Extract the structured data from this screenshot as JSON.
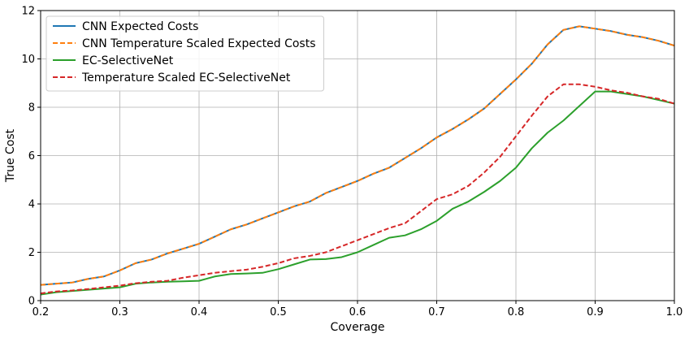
{
  "chart_data": {
    "type": "line",
    "title": "",
    "xlabel": "Coverage",
    "ylabel": "True Cost",
    "xlim": [
      0.2,
      1.0
    ],
    "ylim": [
      0,
      12
    ],
    "xticks": [
      0.2,
      0.3,
      0.4,
      0.5,
      0.6,
      0.7,
      0.8,
      0.9,
      1.0
    ],
    "xtick_labels": [
      "0.2",
      "0.3",
      "0.4",
      "0.5",
      "0.6",
      "0.7",
      "0.8",
      "0.9",
      "1.0"
    ],
    "yticks": [
      0,
      2,
      4,
      6,
      8,
      10,
      12
    ],
    "ytick_labels": [
      "0",
      "2",
      "4",
      "6",
      "8",
      "10",
      "12"
    ],
    "grid": true,
    "legend_position": "top-left",
    "series": [
      {
        "name": "CNN Expected Costs",
        "color": "#1f77b4",
        "style": "solid",
        "x": [
          0.2,
          0.22,
          0.24,
          0.26,
          0.28,
          0.3,
          0.32,
          0.34,
          0.36,
          0.38,
          0.4,
          0.42,
          0.44,
          0.46,
          0.48,
          0.5,
          0.52,
          0.54,
          0.56,
          0.58,
          0.6,
          0.62,
          0.64,
          0.66,
          0.68,
          0.7,
          0.72,
          0.74,
          0.76,
          0.78,
          0.8,
          0.82,
          0.84,
          0.86,
          0.88,
          0.9,
          0.92,
          0.94,
          0.96,
          0.98,
          1.0
        ],
        "y": [
          0.65,
          0.7,
          0.75,
          0.9,
          1.0,
          1.25,
          1.55,
          1.7,
          1.95,
          2.15,
          2.35,
          2.65,
          2.95,
          3.15,
          3.4,
          3.65,
          3.9,
          4.1,
          4.45,
          4.7,
          4.95,
          5.25,
          5.5,
          5.9,
          6.3,
          6.75,
          7.1,
          7.5,
          7.95,
          8.55,
          9.15,
          9.8,
          10.6,
          11.2,
          11.35,
          11.25,
          11.15,
          11.0,
          10.9,
          10.75,
          10.55
        ]
      },
      {
        "name": "CNN Temperature Scaled Expected Costs",
        "color": "#ff7f0e",
        "style": "dashed",
        "x": [
          0.2,
          0.22,
          0.24,
          0.26,
          0.28,
          0.3,
          0.32,
          0.34,
          0.36,
          0.38,
          0.4,
          0.42,
          0.44,
          0.46,
          0.48,
          0.5,
          0.52,
          0.54,
          0.56,
          0.58,
          0.6,
          0.62,
          0.64,
          0.66,
          0.68,
          0.7,
          0.72,
          0.74,
          0.76,
          0.78,
          0.8,
          0.82,
          0.84,
          0.86,
          0.88,
          0.9,
          0.92,
          0.94,
          0.96,
          0.98,
          1.0
        ],
        "y": [
          0.65,
          0.7,
          0.75,
          0.9,
          1.0,
          1.25,
          1.55,
          1.7,
          1.95,
          2.15,
          2.35,
          2.65,
          2.95,
          3.15,
          3.4,
          3.65,
          3.9,
          4.1,
          4.45,
          4.7,
          4.95,
          5.25,
          5.5,
          5.9,
          6.3,
          6.75,
          7.1,
          7.5,
          7.95,
          8.55,
          9.15,
          9.8,
          10.6,
          11.2,
          11.35,
          11.25,
          11.15,
          11.0,
          10.9,
          10.75,
          10.55
        ]
      },
      {
        "name": "EC-SelectiveNet",
        "color": "#2ca02c",
        "style": "solid",
        "x": [
          0.2,
          0.22,
          0.24,
          0.26,
          0.28,
          0.3,
          0.32,
          0.34,
          0.36,
          0.38,
          0.4,
          0.42,
          0.44,
          0.46,
          0.48,
          0.5,
          0.52,
          0.54,
          0.56,
          0.58,
          0.6,
          0.62,
          0.64,
          0.66,
          0.68,
          0.7,
          0.72,
          0.74,
          0.76,
          0.78,
          0.8,
          0.82,
          0.84,
          0.86,
          0.88,
          0.9,
          0.92,
          0.94,
          0.96,
          0.98,
          1.0
        ],
        "y": [
          0.25,
          0.35,
          0.4,
          0.45,
          0.5,
          0.55,
          0.7,
          0.75,
          0.78,
          0.8,
          0.82,
          1.0,
          1.1,
          1.12,
          1.15,
          1.3,
          1.5,
          1.7,
          1.72,
          1.8,
          2.0,
          2.3,
          2.6,
          2.7,
          2.95,
          3.3,
          3.8,
          4.1,
          4.5,
          4.95,
          5.5,
          6.3,
          6.95,
          7.45,
          8.05,
          8.65,
          8.65,
          8.55,
          8.45,
          8.3,
          8.15
        ]
      },
      {
        "name": "Temperature Scaled EC-SelectiveNet",
        "color": "#d62728",
        "style": "dashed",
        "x": [
          0.2,
          0.22,
          0.24,
          0.26,
          0.28,
          0.3,
          0.32,
          0.34,
          0.36,
          0.38,
          0.4,
          0.42,
          0.44,
          0.46,
          0.48,
          0.5,
          0.52,
          0.54,
          0.56,
          0.58,
          0.6,
          0.62,
          0.64,
          0.66,
          0.68,
          0.7,
          0.72,
          0.74,
          0.76,
          0.78,
          0.8,
          0.82,
          0.84,
          0.86,
          0.88,
          0.9,
          0.92,
          0.94,
          0.96,
          0.98,
          1.0
        ],
        "y": [
          0.3,
          0.38,
          0.42,
          0.48,
          0.55,
          0.62,
          0.72,
          0.78,
          0.82,
          0.95,
          1.05,
          1.15,
          1.22,
          1.28,
          1.4,
          1.55,
          1.75,
          1.85,
          2.0,
          2.25,
          2.5,
          2.75,
          3.0,
          3.2,
          3.7,
          4.2,
          4.4,
          4.75,
          5.3,
          5.95,
          6.8,
          7.65,
          8.45,
          8.95,
          8.95,
          8.85,
          8.7,
          8.6,
          8.45,
          8.35,
          8.15
        ]
      }
    ]
  }
}
